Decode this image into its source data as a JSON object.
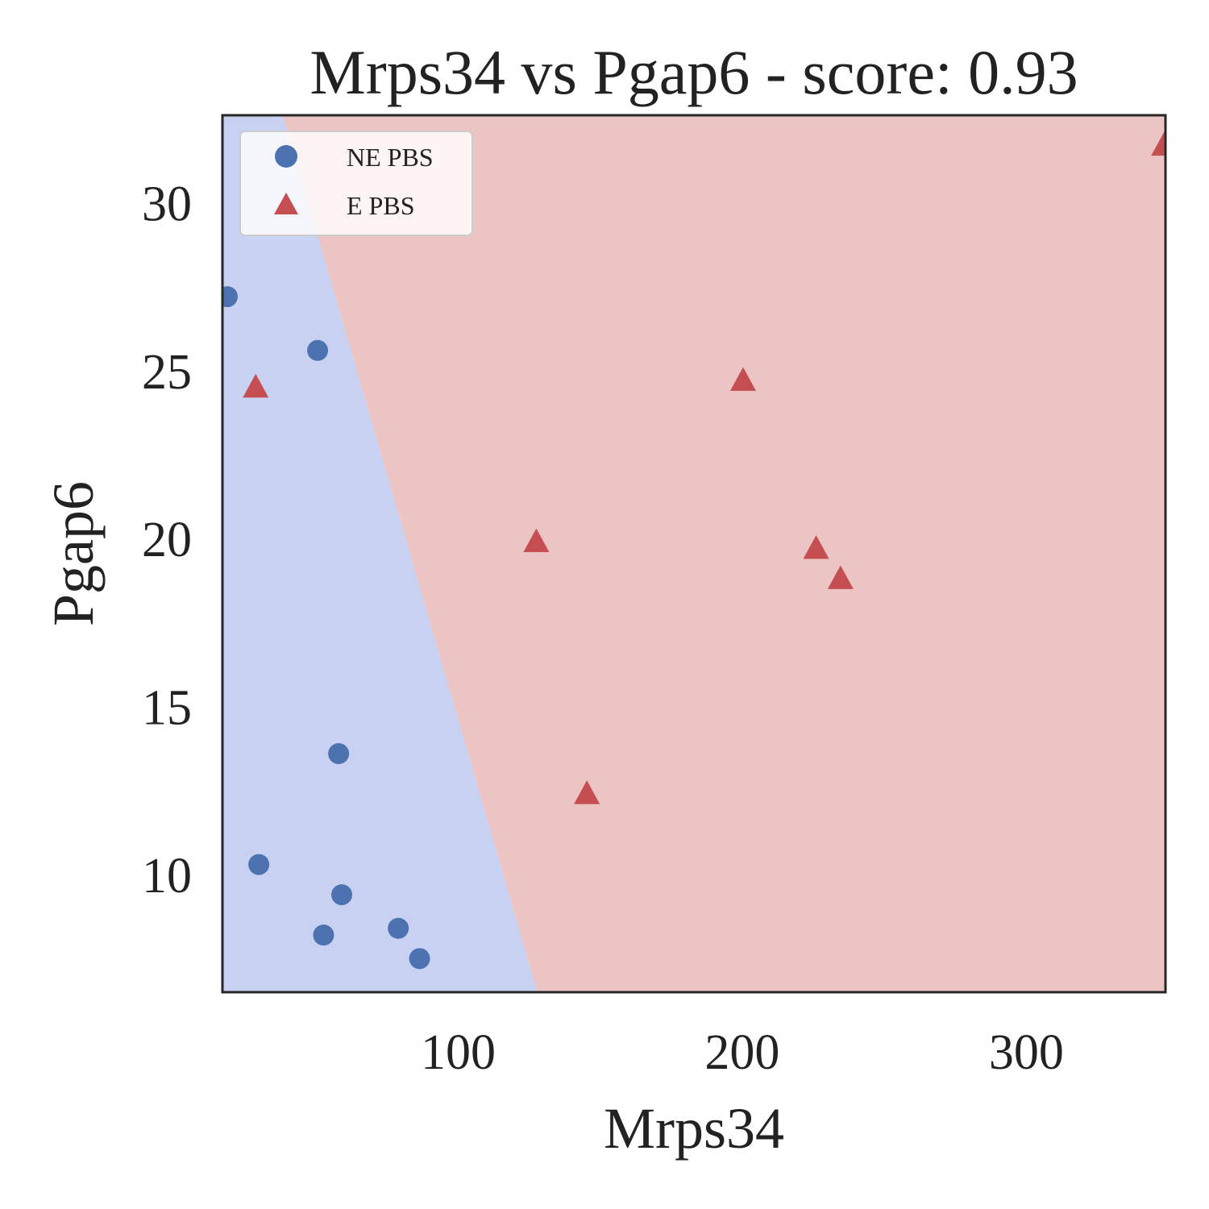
{
  "chart_data": {
    "type": "scatter",
    "title": "Mrps34 vs Pgap6 - score: 0.93",
    "xlabel": "Mrps34",
    "ylabel": "Pgap6",
    "xlim": [
      17,
      349
    ],
    "ylim": [
      6.5,
      32.6
    ],
    "xticks": [
      100,
      200,
      300
    ],
    "yticks": [
      10,
      15,
      20,
      25,
      30
    ],
    "grid": false,
    "legend_position": "top-left",
    "decision_boundary": {
      "points": [
        [
          38.2,
          32.6
        ],
        [
          127.9,
          6.5
        ]
      ],
      "left_region_color": "#c8d1f1",
      "right_region_color": "#edc4c4"
    },
    "series": [
      {
        "name": "NE PBS",
        "marker": "circle",
        "color": "#4c72b0",
        "points": [
          [
            18.7,
            27.2
          ],
          [
            50.5,
            25.6
          ],
          [
            29.8,
            10.3
          ],
          [
            57.9,
            13.6
          ],
          [
            59.0,
            9.4
          ],
          [
            52.6,
            8.2
          ],
          [
            78.9,
            8.4
          ],
          [
            86.4,
            7.5
          ]
        ]
      },
      {
        "name": "E PBS",
        "marker": "triangle",
        "color": "#c44e52",
        "points": [
          [
            28.7,
            24.5
          ],
          [
            127.5,
            19.9
          ],
          [
            145.3,
            12.4
          ],
          [
            200.3,
            24.7
          ],
          [
            226.0,
            19.7
          ],
          [
            234.6,
            18.8
          ],
          [
            348.5,
            31.7
          ]
        ]
      }
    ]
  }
}
